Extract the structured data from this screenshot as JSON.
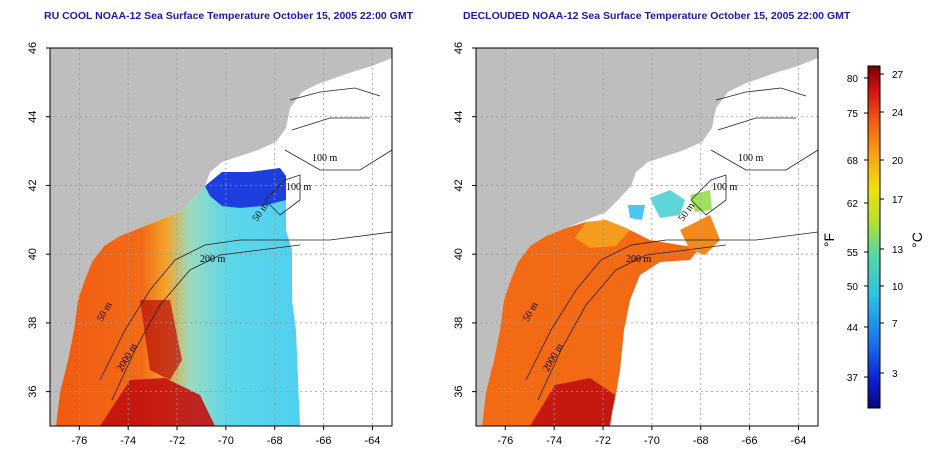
{
  "panels": [
    {
      "title": "RU COOL NOAA-12 Sea Surface Temperature October 15, 2005 22:00 GMT",
      "x_ticks": [
        "-76",
        "-74",
        "-72",
        "-70",
        "-68",
        "-66",
        "-64"
      ],
      "y_ticks": [
        "36",
        "38",
        "40",
        "42",
        "44",
        "46"
      ],
      "contour_labels": [
        "100 m",
        "100 m",
        "50 m",
        "200 m",
        "50 m",
        "2000 m"
      ]
    },
    {
      "title": "DECLOUDED NOAA-12 Sea Surface Temperature October 15, 2005 22:00 GMT",
      "x_ticks": [
        "-76",
        "-74",
        "-72",
        "-70",
        "-68",
        "-66",
        "-64"
      ],
      "y_ticks": [
        "36",
        "38",
        "40",
        "42",
        "44",
        "46"
      ],
      "contour_labels": [
        "100 m",
        "100 m",
        "50 m",
        "200 m",
        "50 m",
        "2000 m"
      ]
    }
  ],
  "colorbar": {
    "unit_f": "°F",
    "unit_c": "°C",
    "f_ticks": [
      "80",
      "75",
      "68",
      "62",
      "55",
      "50",
      "44",
      "37"
    ],
    "c_ticks": [
      "27",
      "24",
      "20",
      "17",
      "13",
      "10",
      "7",
      "3"
    ]
  },
  "colors": {
    "land": "#bebebe",
    "ocean_cloud": "#ffffff",
    "title": "#1a1aa8"
  },
  "chart_data": [
    {
      "type": "heatmap",
      "title": "RU COOL NOAA-12 Sea Surface Temperature October 15, 2005 22:00 GMT",
      "x_ticks": [
        -76,
        -74,
        -72,
        -70,
        -68,
        -66,
        -64
      ],
      "y_ticks": [
        36,
        38,
        40,
        42,
        44,
        46
      ],
      "xlim": [
        -77.2,
        -63.2
      ],
      "ylim": [
        35,
        46
      ],
      "grid": true,
      "color_range_c": [
        0,
        28
      ]
    },
    {
      "type": "heatmap",
      "title": "DECLOUDED NOAA-12 Sea Surface Temperature October 15, 2005 22:00 GMT",
      "x_ticks": [
        -76,
        -74,
        -72,
        -70,
        -68,
        -66,
        -64
      ],
      "y_ticks": [
        36,
        38,
        40,
        42,
        44,
        46
      ],
      "xlim": [
        -77.2,
        -63.2
      ],
      "ylim": [
        35,
        46
      ],
      "grid": true,
      "color_range_c": [
        0,
        28
      ]
    }
  ]
}
